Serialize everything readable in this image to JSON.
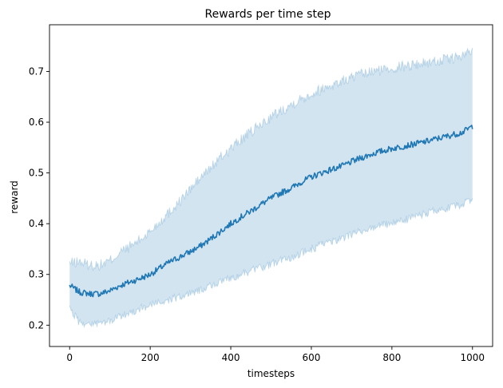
{
  "chart_data": {
    "type": "line",
    "title": "Rewards per time step",
    "xlabel": "timesteps",
    "ylabel": "reward",
    "xlim": [
      -50,
      1050
    ],
    "ylim": [
      0.158,
      0.792
    ],
    "xticks": [
      0,
      200,
      400,
      600,
      800,
      1000
    ],
    "yticks": [
      0.2,
      0.3,
      0.4,
      0.5,
      0.6,
      0.7
    ],
    "grid": false,
    "legend": "none",
    "colors": {
      "line": "#1f77b4",
      "band_fill": "#1f77b4"
    },
    "series": [
      {
        "x": [
          0,
          25,
          50,
          75,
          100,
          125,
          150,
          175,
          200,
          225,
          250,
          275,
          300,
          325,
          350,
          375,
          400,
          425,
          450,
          475,
          500,
          525,
          550,
          575,
          600,
          625,
          650,
          675,
          700,
          725,
          750,
          775,
          800,
          825,
          850,
          875,
          900,
          925,
          950,
          975,
          1000
        ],
        "mean": [
          0.278,
          0.265,
          0.262,
          0.262,
          0.268,
          0.278,
          0.285,
          0.292,
          0.3,
          0.313,
          0.325,
          0.335,
          0.345,
          0.356,
          0.37,
          0.385,
          0.4,
          0.413,
          0.425,
          0.438,
          0.45,
          0.461,
          0.47,
          0.482,
          0.492,
          0.5,
          0.507,
          0.513,
          0.522,
          0.53,
          0.537,
          0.543,
          0.548,
          0.552,
          0.556,
          0.56,
          0.565,
          0.57,
          0.575,
          0.58,
          0.592
        ],
        "upper": [
          0.322,
          0.325,
          0.318,
          0.318,
          0.327,
          0.343,
          0.355,
          0.368,
          0.385,
          0.405,
          0.425,
          0.445,
          0.468,
          0.49,
          0.51,
          0.53,
          0.548,
          0.565,
          0.58,
          0.595,
          0.61,
          0.623,
          0.635,
          0.646,
          0.656,
          0.665,
          0.673,
          0.68,
          0.688,
          0.694,
          0.699,
          0.703,
          0.707,
          0.71,
          0.713,
          0.716,
          0.719,
          0.722,
          0.726,
          0.73,
          0.74
        ],
        "lower": [
          0.232,
          0.205,
          0.203,
          0.203,
          0.208,
          0.217,
          0.225,
          0.233,
          0.238,
          0.245,
          0.25,
          0.256,
          0.263,
          0.27,
          0.278,
          0.285,
          0.293,
          0.3,
          0.307,
          0.313,
          0.32,
          0.327,
          0.334,
          0.342,
          0.35,
          0.358,
          0.364,
          0.37,
          0.378,
          0.385,
          0.391,
          0.397,
          0.4,
          0.406,
          0.412,
          0.418,
          0.423,
          0.428,
          0.433,
          0.438,
          0.447
        ]
      }
    ]
  }
}
